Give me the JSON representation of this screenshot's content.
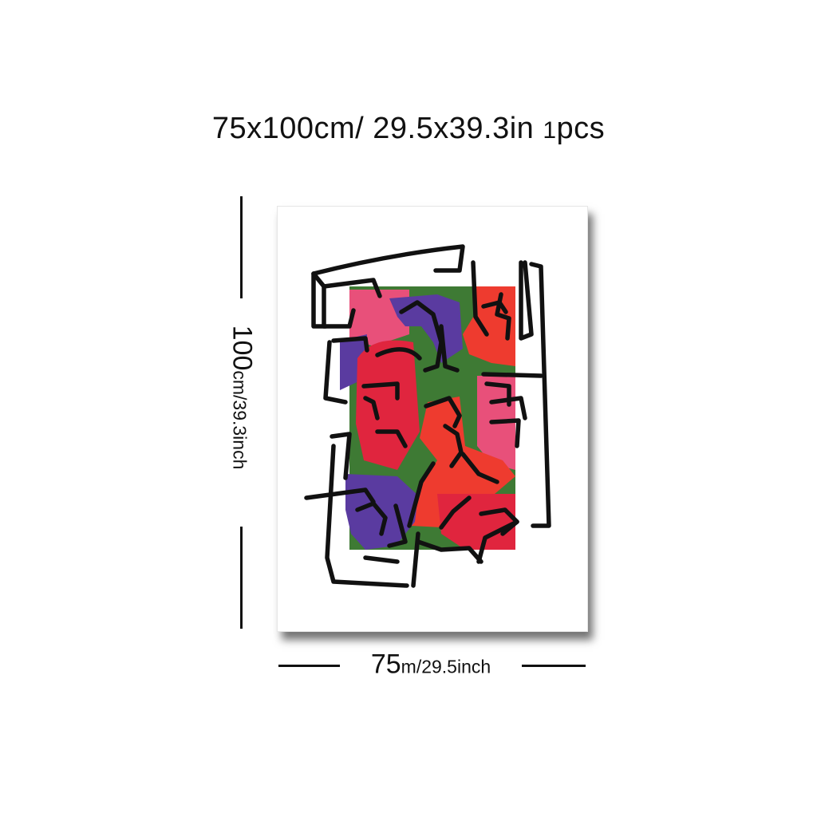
{
  "header": {
    "size_cm": "75",
    "size_cm_x": "x100cm/",
    "size_in": "29.5x39.3in",
    "pieces_num": "1",
    "pieces_label": "pcs"
  },
  "height_dimension": {
    "value": "100",
    "unit": "cm/39.3inch"
  },
  "width_dimension": {
    "value": "75",
    "unit": "m/29.5inch"
  },
  "colors": {
    "green": "#3e7a34",
    "pink": "#e8507a",
    "red": "#ee3b2f",
    "crimson": "#e0253e",
    "purple": "#5a3ba0",
    "line": "#111111"
  }
}
